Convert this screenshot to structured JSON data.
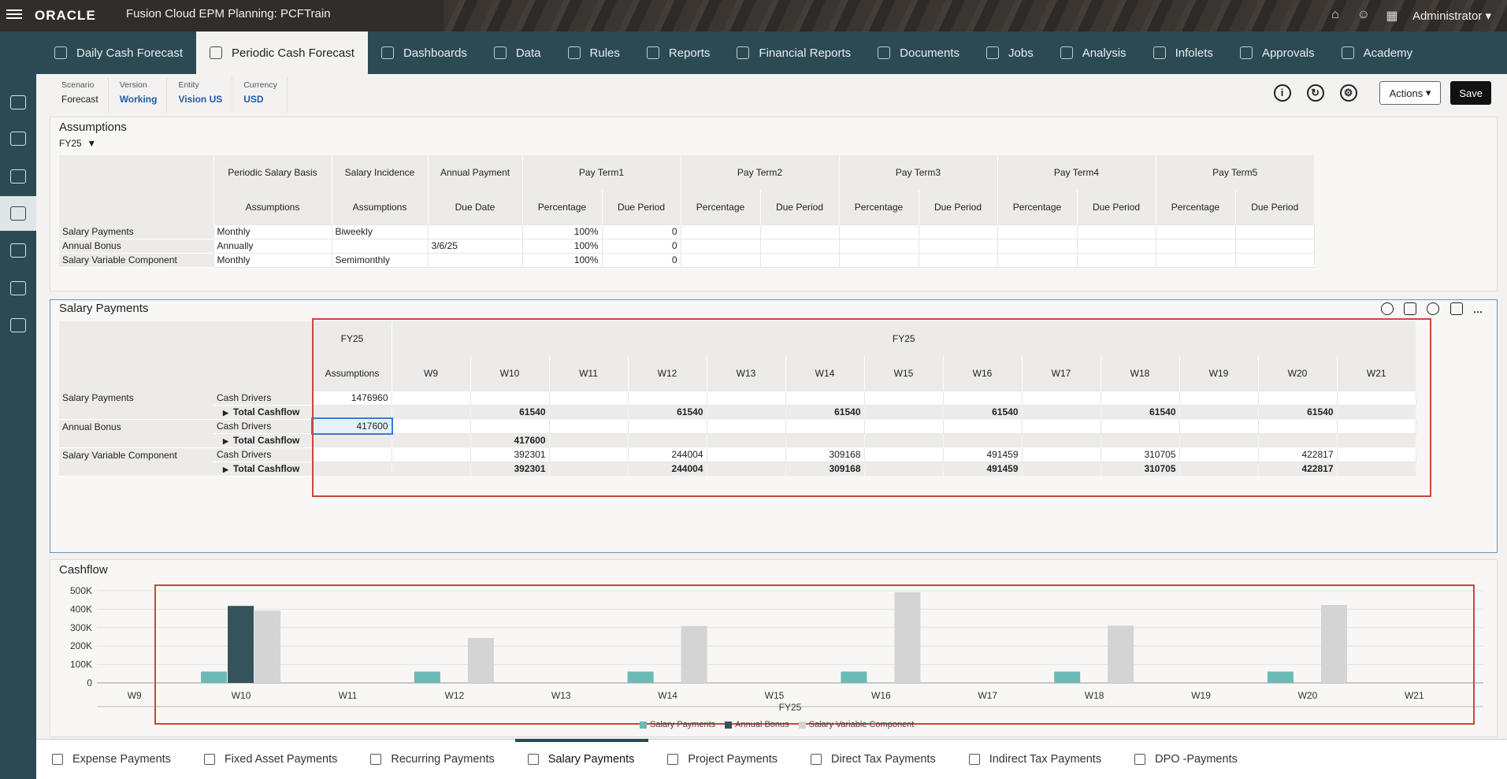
{
  "app": {
    "brand": "ORACLE",
    "title": "Fusion Cloud EPM Planning: PCFTrain",
    "user": "Administrator"
  },
  "nav": {
    "tabs": [
      {
        "label": "Daily Cash Forecast"
      },
      {
        "label": "Periodic Cash Forecast",
        "active": true
      },
      {
        "label": "Dashboards"
      },
      {
        "label": "Data"
      },
      {
        "label": "Rules"
      },
      {
        "label": "Reports"
      },
      {
        "label": "Financial Reports"
      },
      {
        "label": "Documents"
      },
      {
        "label": "Jobs"
      },
      {
        "label": "Analysis"
      },
      {
        "label": "Infolets"
      },
      {
        "label": "Approvals"
      },
      {
        "label": "Academy"
      }
    ]
  },
  "pov": [
    {
      "label": "Scenario",
      "value": "Forecast"
    },
    {
      "label": "Version",
      "value": "Working"
    },
    {
      "label": "Entity",
      "value": "Vision US"
    },
    {
      "label": "Currency",
      "value": "USD"
    }
  ],
  "actions": {
    "actions_label": "Actions",
    "save_label": "Save"
  },
  "assumptions": {
    "title": "Assumptions",
    "year": "FY25",
    "groups": [
      "Periodic Salary Basis",
      "Salary Incidence",
      "Annual Payment",
      "Pay Term1",
      "Pay Term2",
      "Pay Term3",
      "Pay Term4",
      "Pay Term5"
    ],
    "subheaders": [
      "Assumptions",
      "Assumptions",
      "Due Date",
      "Percentage",
      "Due Period",
      "Percentage",
      "Due Period",
      "Percentage",
      "Due Period",
      "Percentage",
      "Due Period",
      "Percentage",
      "Due Period"
    ],
    "rows": [
      {
        "label": "Salary Payments",
        "cells": [
          "Monthly",
          "Biweekly",
          "",
          "100%",
          "0",
          "",
          "",
          "",
          "",
          "",
          "",
          "",
          ""
        ]
      },
      {
        "label": "Annual Bonus",
        "cells": [
          "Annually",
          "",
          "3/6/25",
          "100%",
          "0",
          "",
          "",
          "",
          "",
          "",
          "",
          "",
          ""
        ]
      },
      {
        "label": "Salary Variable Component",
        "cells": [
          "Monthly",
          "Semimonthly",
          "",
          "100%",
          "0",
          "",
          "",
          "",
          "",
          "",
          "",
          "",
          ""
        ]
      }
    ]
  },
  "salary": {
    "title": "Salary Payments",
    "year": "FY25",
    "assumptions_header": "Assumptions",
    "weeks": [
      "W9",
      "W10",
      "W11",
      "W12",
      "W13",
      "W14",
      "W15",
      "W16",
      "W17",
      "W18",
      "W19",
      "W20",
      "W21"
    ],
    "cash_drivers_label": "Cash Drivers",
    "total_label": "Total Cashflow",
    "groups": [
      {
        "label": "Salary Payments",
        "driver_assump": "1476960",
        "driver": [
          "",
          "",
          "",
          "",
          "",
          "",
          "",
          "",
          "",
          "",
          "",
          "",
          ""
        ],
        "total_assump": "",
        "total": [
          "",
          "61540",
          "",
          "61540",
          "",
          "61540",
          "",
          "61540",
          "",
          "61540",
          "",
          "61540",
          ""
        ]
      },
      {
        "label": "Annual Bonus",
        "driver_assump": "417600",
        "driver": [
          "",
          "",
          "",
          "",
          "",
          "",
          "",
          "",
          "",
          "",
          "",
          "",
          ""
        ],
        "total_assump": "",
        "total": [
          "",
          "417600",
          "",
          "",
          "",
          "",
          "",
          "",
          "",
          "",
          "",
          "",
          ""
        ]
      },
      {
        "label": "Salary Variable Component",
        "driver_assump": "",
        "driver": [
          "",
          "392301",
          "",
          "244004",
          "",
          "309168",
          "",
          "491459",
          "",
          "310705",
          "",
          "422817",
          ""
        ],
        "total_assump": "",
        "total": [
          "",
          "392301",
          "",
          "244004",
          "",
          "309168",
          "",
          "491459",
          "",
          "310705",
          "",
          "422817",
          ""
        ]
      }
    ]
  },
  "cashflow": {
    "title": "Cashflow"
  },
  "chart_data": {
    "type": "bar",
    "categories": [
      "W9",
      "W10",
      "W11",
      "W12",
      "W13",
      "W14",
      "W15",
      "W16",
      "W17",
      "W18",
      "W19",
      "W20",
      "W21"
    ],
    "xlabel": "FY25",
    "ylim": [
      0,
      500000
    ],
    "yticks": [
      "500K",
      "400K",
      "300K",
      "200K",
      "100K",
      "0"
    ],
    "series": [
      {
        "name": "Salary Payments",
        "color": "#6bbab5",
        "values": [
          0,
          61540,
          0,
          61540,
          0,
          61540,
          0,
          61540,
          0,
          61540,
          0,
          61540,
          0
        ]
      },
      {
        "name": "Annual Bonus",
        "color": "#34535b",
        "values": [
          0,
          417600,
          0,
          0,
          0,
          0,
          0,
          0,
          0,
          0,
          0,
          0,
          0
        ]
      },
      {
        "name": "Salary Variable Component",
        "color": "#d4d4d4",
        "values": [
          0,
          392301,
          0,
          244004,
          0,
          309168,
          0,
          491459,
          0,
          310705,
          0,
          422817,
          0
        ]
      }
    ],
    "legend": "bottom"
  },
  "bottom_tabs": [
    {
      "label": "Expense Payments"
    },
    {
      "label": "Fixed Asset Payments"
    },
    {
      "label": "Recurring Payments"
    },
    {
      "label": "Salary Payments",
      "active": true
    },
    {
      "label": "Project Payments"
    },
    {
      "label": "Direct Tax Payments"
    },
    {
      "label": "Indirect Tax Payments"
    },
    {
      "label": "DPO -Payments"
    }
  ]
}
